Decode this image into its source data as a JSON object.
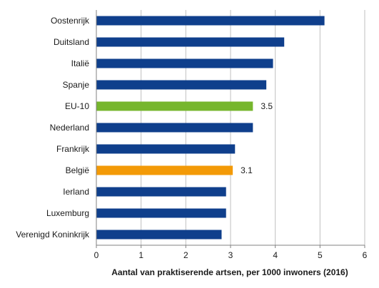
{
  "chart_data": {
    "type": "bar",
    "orientation": "horizontal",
    "categories": [
      "Oostenrijk",
      "Duitsland",
      "Italië",
      "Spanje",
      "EU-10",
      "Nederland",
      "Frankrijk",
      "België",
      "Ierland",
      "Luxemburg",
      "Verenigd Koninkrijk"
    ],
    "values": [
      5.1,
      4.2,
      3.95,
      3.8,
      3.5,
      3.5,
      3.1,
      3.05,
      2.9,
      2.9,
      2.8
    ],
    "data_labels": {
      "EU-10": "3.5",
      "België": "3.1"
    },
    "xlim": [
      0,
      6
    ],
    "xticks": [
      "0",
      "1",
      "2",
      "3",
      "4",
      "5",
      "6"
    ],
    "xlabel": "Aantal van praktiserende artsen, per 1000  inwoners (2016)",
    "grid": "vertical",
    "colors": {
      "default": "#0f3f8c",
      "EU-10": "#76b62d",
      "België": "#f39a07",
      "grid": "#bfbfbf",
      "axis": "#808080"
    }
  }
}
